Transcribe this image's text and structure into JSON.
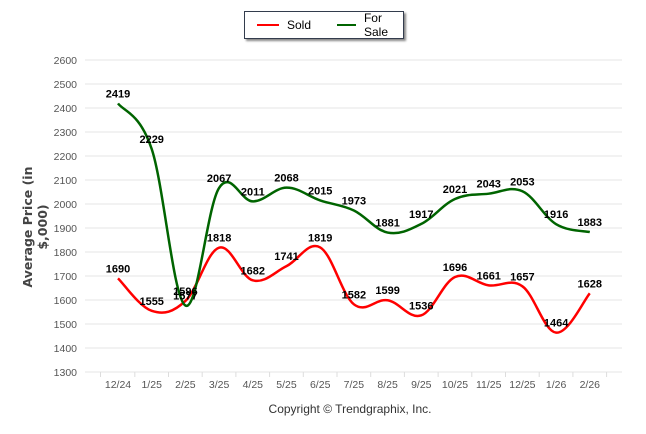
{
  "chart_data": {
    "type": "line",
    "title": "",
    "xlabel": "",
    "ylabel": "Average Price (in $,000)",
    "categories": [
      "12/24",
      "1/25",
      "2/25",
      "3/25",
      "4/25",
      "5/25",
      "6/25",
      "7/25",
      "8/25",
      "9/25",
      "10/25",
      "11/25",
      "12/25",
      "1/26",
      "2/26"
    ],
    "ylim": [
      1300,
      2600
    ],
    "yticks": [
      1300,
      1400,
      1500,
      1600,
      1700,
      1800,
      1900,
      2000,
      2100,
      2200,
      2300,
      2400,
      2500,
      2600
    ],
    "grid": true,
    "legend_position": "top-center",
    "series": [
      {
        "name": "Sold",
        "color": "#ff0000",
        "values": [
          1690,
          1555,
          1596,
          1818,
          1682,
          1741,
          1819,
          1582,
          1599,
          1536,
          1696,
          1661,
          1657,
          1464,
          1628
        ]
      },
      {
        "name": "For Sale",
        "color": "#006400",
        "values": [
          2419,
          2229,
          1577,
          2067,
          2011,
          2068,
          2015,
          1973,
          1881,
          1917,
          2021,
          2043,
          2053,
          1916,
          1883
        ]
      }
    ]
  },
  "legend": {
    "sold": "Sold",
    "for_sale": "For Sale"
  },
  "footer": {
    "copyright": "Copyright © Trendgraphix, Inc."
  }
}
